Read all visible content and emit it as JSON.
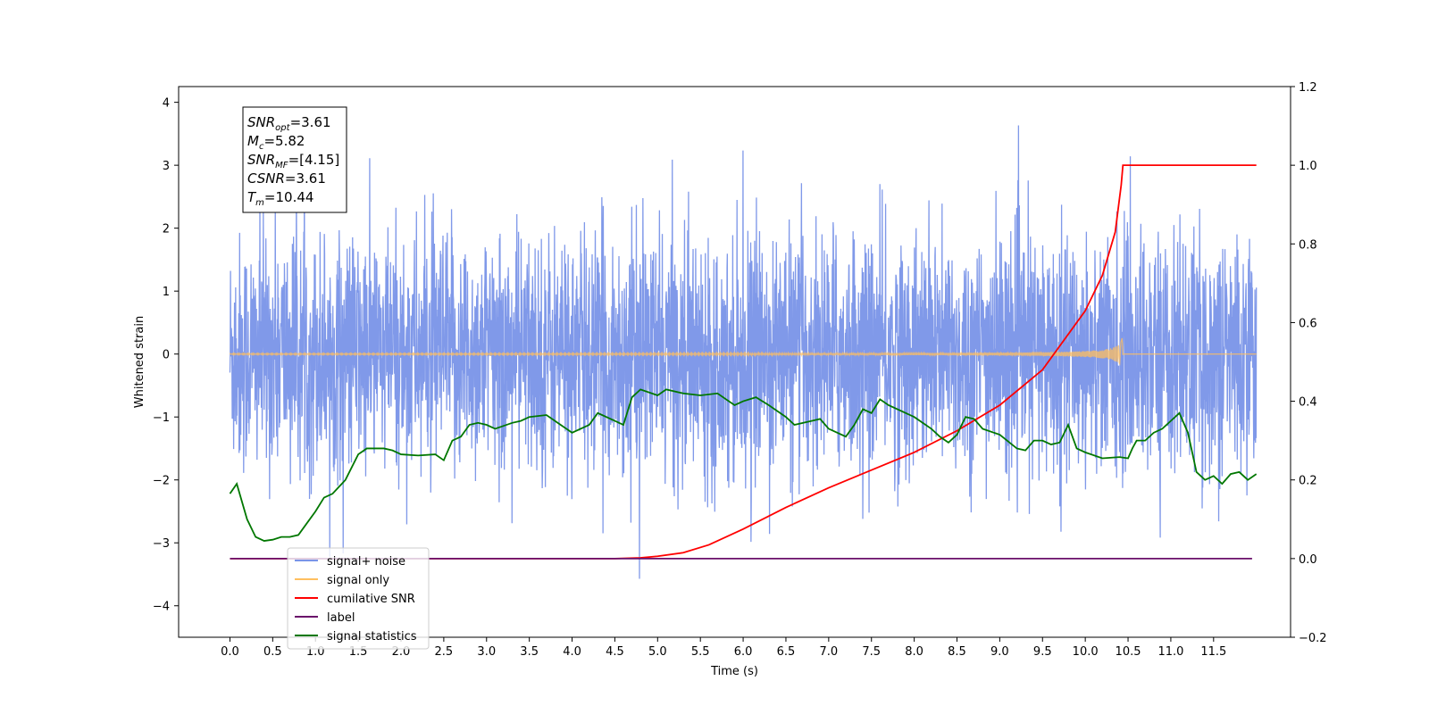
{
  "chart_data": {
    "type": "line",
    "xlabel": "Time (s)",
    "ylabel": "Whitened strain",
    "xlim": [
      -0.6,
      12.4
    ],
    "ylim_left": [
      -4.5,
      4.25
    ],
    "ylim_right": [
      -0.2,
      1.2
    ],
    "x_ticks": [
      0.0,
      0.5,
      1.0,
      1.5,
      2.0,
      2.5,
      3.0,
      3.5,
      4.0,
      4.5,
      5.0,
      5.5,
      6.0,
      6.5,
      7.0,
      7.5,
      8.0,
      8.5,
      9.0,
      9.5,
      10.0,
      10.5,
      11.0,
      11.5
    ],
    "x_tick_labels": [
      "0.0",
      "0.5",
      "1.0",
      "1.5",
      "2.0",
      "2.5",
      "3.0",
      "3.5",
      "4.0",
      "4.5",
      "5.0",
      "5.5",
      "6.0",
      "6.5",
      "7.0",
      "7.5",
      "8.0",
      "8.5",
      "9.0",
      "9.5",
      "10.0",
      "10.5",
      "11.0",
      "11.5"
    ],
    "y_ticks_left": [
      -4,
      -3,
      -2,
      -1,
      0,
      1,
      2,
      3,
      4
    ],
    "y_tick_labels_left": [
      "−4",
      "−3",
      "−2",
      "−1",
      "0",
      "1",
      "2",
      "3",
      "4"
    ],
    "y_ticks_right": [
      -0.2,
      0.0,
      0.2,
      0.4,
      0.6,
      0.8,
      1.0,
      1.2
    ],
    "y_tick_labels_right": [
      "−0.2",
      "0.0",
      "0.2",
      "0.4",
      "0.6",
      "0.8",
      "1.0",
      "1.2"
    ],
    "grid": false,
    "legend_position": "lower-left",
    "info_box": {
      "lines": [
        {
          "base": "SNR",
          "sub": "opt",
          "value": "=3.61"
        },
        {
          "base": "M",
          "sub": "c",
          "value": "=5.82"
        },
        {
          "base": "SNR",
          "sub": "MF",
          "value": "=[4.15]"
        },
        {
          "base": "CSNR",
          "sub": "",
          "value": "=3.61"
        },
        {
          "base": "T",
          "sub": "m",
          "value": "=10.44"
        }
      ]
    },
    "series": [
      {
        "name": "signal+ noise",
        "axis": "left",
        "color": "#7994e8",
        "kind": "noise",
        "x_range": [
          0.0,
          12.0
        ],
        "std": 1.0,
        "spike_min": -4.1,
        "spike_max": 3.75
      },
      {
        "name": "signal only",
        "axis": "left",
        "color": "#ffbf5f",
        "kind": "chirp",
        "x_range": [
          0.0,
          12.0
        ],
        "merger_time": 10.44,
        "peak_amplitude": 0.32
      },
      {
        "name": "cumilative SNR",
        "axis": "right",
        "color": "#ff0000",
        "points": [
          [
            0.0,
            0.0
          ],
          [
            4.5,
            0.0
          ],
          [
            4.8,
            0.002
          ],
          [
            5.0,
            0.006
          ],
          [
            5.3,
            0.015
          ],
          [
            5.6,
            0.035
          ],
          [
            6.0,
            0.075
          ],
          [
            6.5,
            0.13
          ],
          [
            7.0,
            0.18
          ],
          [
            7.5,
            0.225
          ],
          [
            8.0,
            0.27
          ],
          [
            8.5,
            0.325
          ],
          [
            9.0,
            0.39
          ],
          [
            9.5,
            0.48
          ],
          [
            10.0,
            0.63
          ],
          [
            10.2,
            0.72
          ],
          [
            10.35,
            0.83
          ],
          [
            10.42,
            0.95
          ],
          [
            10.44,
            1.0
          ],
          [
            12.0,
            1.0
          ]
        ]
      },
      {
        "name": "label",
        "axis": "right",
        "color": "#6a0f6a",
        "points": [
          [
            0.0,
            0.0
          ],
          [
            11.95,
            0.0
          ]
        ]
      },
      {
        "name": "signal statistics",
        "axis": "right",
        "color": "#007700",
        "points": [
          [
            0.0,
            0.165
          ],
          [
            0.08,
            0.19
          ],
          [
            0.2,
            0.1
          ],
          [
            0.3,
            0.055
          ],
          [
            0.4,
            0.045
          ],
          [
            0.5,
            0.048
          ],
          [
            0.6,
            0.055
          ],
          [
            0.7,
            0.055
          ],
          [
            0.8,
            0.06
          ],
          [
            0.9,
            0.09
          ],
          [
            1.0,
            0.12
          ],
          [
            1.1,
            0.155
          ],
          [
            1.2,
            0.165
          ],
          [
            1.35,
            0.2
          ],
          [
            1.5,
            0.265
          ],
          [
            1.6,
            0.28
          ],
          [
            1.8,
            0.28
          ],
          [
            1.9,
            0.275
          ],
          [
            2.0,
            0.265
          ],
          [
            2.2,
            0.262
          ],
          [
            2.4,
            0.265
          ],
          [
            2.5,
            0.25
          ],
          [
            2.6,
            0.3
          ],
          [
            2.7,
            0.31
          ],
          [
            2.8,
            0.34
          ],
          [
            2.9,
            0.345
          ],
          [
            3.0,
            0.34
          ],
          [
            3.1,
            0.33
          ],
          [
            3.3,
            0.345
          ],
          [
            3.4,
            0.35
          ],
          [
            3.5,
            0.36
          ],
          [
            3.7,
            0.365
          ],
          [
            3.8,
            0.35
          ],
          [
            3.9,
            0.335
          ],
          [
            4.0,
            0.32
          ],
          [
            4.2,
            0.34
          ],
          [
            4.3,
            0.37
          ],
          [
            4.5,
            0.35
          ],
          [
            4.6,
            0.34
          ],
          [
            4.7,
            0.41
          ],
          [
            4.8,
            0.43
          ],
          [
            5.0,
            0.415
          ],
          [
            5.1,
            0.43
          ],
          [
            5.3,
            0.42
          ],
          [
            5.5,
            0.415
          ],
          [
            5.7,
            0.42
          ],
          [
            5.9,
            0.39
          ],
          [
            6.0,
            0.4
          ],
          [
            6.15,
            0.41
          ],
          [
            6.3,
            0.39
          ],
          [
            6.5,
            0.36
          ],
          [
            6.6,
            0.34
          ],
          [
            6.8,
            0.35
          ],
          [
            6.9,
            0.355
          ],
          [
            7.0,
            0.33
          ],
          [
            7.1,
            0.32
          ],
          [
            7.2,
            0.31
          ],
          [
            7.3,
            0.34
          ],
          [
            7.4,
            0.38
          ],
          [
            7.5,
            0.37
          ],
          [
            7.6,
            0.405
          ],
          [
            7.7,
            0.39
          ],
          [
            8.0,
            0.36
          ],
          [
            8.2,
            0.33
          ],
          [
            8.3,
            0.31
          ],
          [
            8.4,
            0.295
          ],
          [
            8.5,
            0.315
          ],
          [
            8.6,
            0.36
          ],
          [
            8.7,
            0.355
          ],
          [
            8.8,
            0.33
          ],
          [
            9.0,
            0.315
          ],
          [
            9.2,
            0.28
          ],
          [
            9.3,
            0.275
          ],
          [
            9.4,
            0.3
          ],
          [
            9.5,
            0.3
          ],
          [
            9.6,
            0.29
          ],
          [
            9.7,
            0.295
          ],
          [
            9.8,
            0.34
          ],
          [
            9.9,
            0.28
          ],
          [
            10.0,
            0.27
          ],
          [
            10.2,
            0.255
          ],
          [
            10.4,
            0.258
          ],
          [
            10.5,
            0.255
          ],
          [
            10.55,
            0.28
          ],
          [
            10.6,
            0.3
          ],
          [
            10.7,
            0.3
          ],
          [
            10.8,
            0.32
          ],
          [
            10.9,
            0.33
          ],
          [
            11.0,
            0.35
          ],
          [
            11.1,
            0.37
          ],
          [
            11.2,
            0.32
          ],
          [
            11.3,
            0.22
          ],
          [
            11.4,
            0.2
          ],
          [
            11.5,
            0.21
          ],
          [
            11.6,
            0.19
          ],
          [
            11.7,
            0.215
          ],
          [
            11.8,
            0.22
          ],
          [
            11.9,
            0.2
          ],
          [
            12.0,
            0.215
          ]
        ]
      }
    ],
    "legend_entries": [
      {
        "label": "signal+ noise",
        "color": "#7994e8",
        "opacity": 1
      },
      {
        "label": "signal only",
        "color": "#ffbf5f",
        "opacity": 1
      },
      {
        "label": "cumilative SNR",
        "color": "#ff0000",
        "opacity": 1
      },
      {
        "label": "label",
        "color": "#6a0f6a",
        "opacity": 1
      },
      {
        "label": "signal statistics",
        "color": "#007700",
        "opacity": 1
      }
    ]
  }
}
